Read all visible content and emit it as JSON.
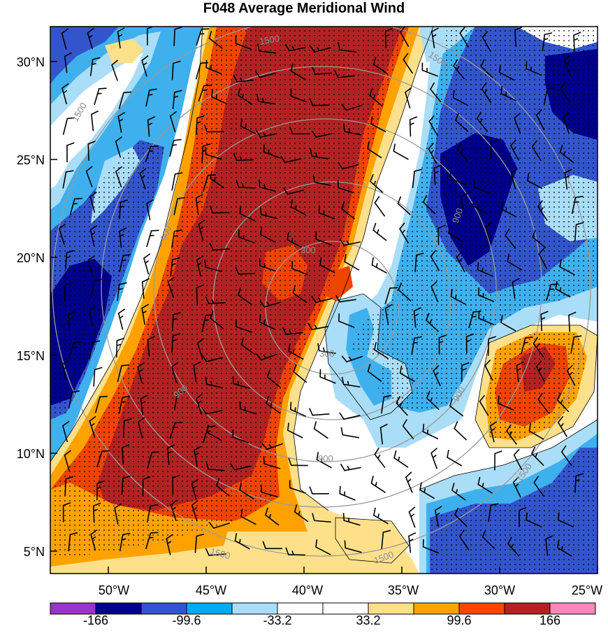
{
  "title": "F048 Average Meridional Wind",
  "y_axis_labels": [
    "30°N",
    "25°N",
    "20°N",
    "15°N",
    "10°N",
    "5°N"
  ],
  "x_axis_labels": [
    "50°W",
    "45°W",
    "40°W",
    "35°W",
    "30°W",
    "25°W"
  ],
  "contour_labels": [
    "1500",
    "1500",
    "1500",
    "900",
    "900",
    "900",
    "900",
    "300",
    "300",
    "1500",
    "1500",
    "900",
    "1500"
  ],
  "colorbar": {
    "colors": [
      "#9a35c8",
      "#00008b",
      "#3355cc",
      "#00aaee",
      "#aaddf7",
      "#ffffff",
      "#ffffff",
      "#ffe08a",
      "#ffa200",
      "#ff4400",
      "#b22222",
      "#ff88bb"
    ],
    "tick_labels": [
      "-166",
      "-99.6",
      "-33.2",
      "33.2",
      "99.6",
      "166"
    ]
  },
  "palette": {
    "dark_red": "#b22222",
    "red_orange": "#ee4400",
    "orange": "#ffa200",
    "light_yellow": "#ffe08a",
    "light_blue": "#aaddf7",
    "sky_blue": "#3fb0ee",
    "blue": "#3355cc",
    "navy": "#00008b",
    "contour_gray": "#9a9a9a"
  }
}
